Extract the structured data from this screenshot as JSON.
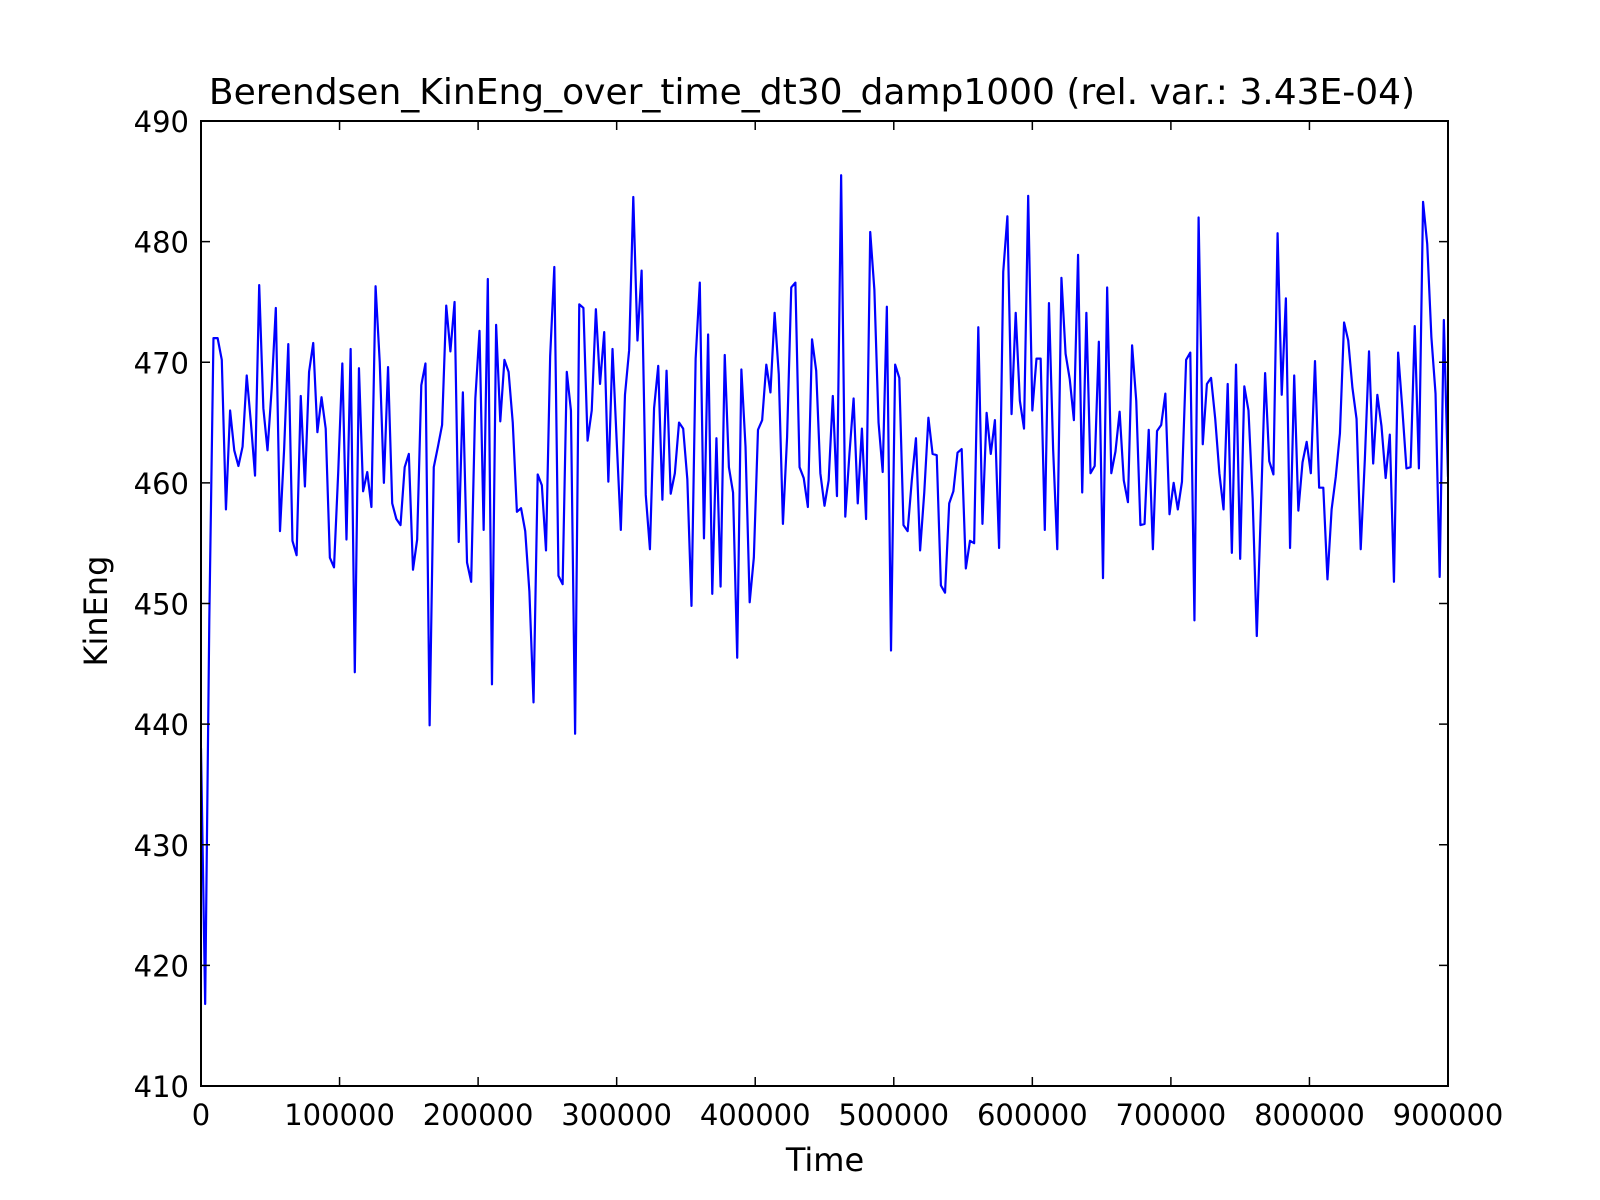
{
  "chart_data": {
    "type": "line",
    "title": "Berendsen_KinEng_over_time_dt30_damp1000 (rel. var.: 3.43E-04)",
    "xlabel": "Time",
    "ylabel": "KinEng",
    "xlim": [
      0,
      900000
    ],
    "ylim": [
      410,
      490
    ],
    "xticks": [
      0,
      100000,
      200000,
      300000,
      400000,
      500000,
      600000,
      700000,
      800000,
      900000
    ],
    "xtick_labels": [
      "0",
      "100000",
      "200000",
      "300000",
      "400000",
      "500000",
      "600000",
      "700000",
      "800000",
      "900000"
    ],
    "yticks": [
      410,
      420,
      430,
      440,
      450,
      460,
      470,
      480,
      490
    ],
    "ytick_labels": [
      "410",
      "420",
      "430",
      "440",
      "450",
      "460",
      "470",
      "480",
      "490"
    ],
    "grid": false,
    "legend": "none",
    "series": [
      {
        "color": "#0000ff",
        "x": [
          0,
          3000,
          6000,
          9000,
          12000,
          15000,
          18000,
          21000,
          24000,
          27000,
          30000,
          33000,
          36000,
          39000,
          42000,
          45000,
          48000,
          51000,
          54000,
          57000,
          60000,
          63000,
          66000,
          69000,
          72000,
          75000,
          78000,
          81000,
          84000,
          87000,
          90000,
          93000,
          96000,
          99000,
          102000,
          105000,
          108000,
          111000,
          114000,
          117000,
          120000,
          123000,
          126000,
          129000,
          132000,
          135000,
          138000,
          141000,
          144000,
          147000,
          150000,
          153000,
          156000,
          159000,
          162000,
          165000,
          168000,
          171000,
          174000,
          177000,
          180000,
          183000,
          186000,
          189000,
          192000,
          195000,
          198000,
          201000,
          204000,
          207000,
          210000,
          213000,
          216000,
          219000,
          222000,
          225000,
          228000,
          231000,
          234000,
          237000,
          240000,
          243000,
          246000,
          249000,
          252000,
          255000,
          258000,
          261000,
          264000,
          267000,
          270000,
          273000,
          276000,
          279000,
          282000,
          285000,
          288000,
          291000,
          294000,
          297000,
          300000,
          303000,
          306000,
          309000,
          312000,
          315000,
          318000,
          321000,
          324000,
          327000,
          330000,
          333000,
          336000,
          339000,
          342000,
          345000,
          348000,
          351000,
          354000,
          357000,
          360000,
          363000,
          366000,
          369000,
          372000,
          375000,
          378000,
          381000,
          384000,
          387000,
          390000,
          393000,
          396000,
          399000,
          402000,
          405000,
          408000,
          411000,
          414000,
          417000,
          420000,
          423000,
          426000,
          429000,
          432000,
          435000,
          438000,
          441000,
          444000,
          447000,
          450000,
          453000,
          456000,
          459000,
          462000,
          465000,
          468000,
          471000,
          474000,
          477000,
          480000,
          483000,
          486000,
          489000,
          492000,
          495000,
          498000,
          501000,
          504000,
          507000,
          510000,
          513000,
          516000,
          519000,
          522000,
          525000,
          528000,
          531000,
          534000,
          537000,
          540000,
          543000,
          546000,
          549000,
          552000,
          555000,
          558000,
          561000,
          564000,
          567000,
          570000,
          573000,
          576000,
          579000,
          582000,
          585000,
          588000,
          591000,
          594000,
          597000,
          600000,
          603000,
          606000,
          609000,
          612000,
          615000,
          618000,
          621000,
          624000,
          627000,
          630000,
          633000,
          636000,
          639000,
          642000,
          645000,
          648000,
          651000,
          654000,
          657000,
          660000,
          663000,
          666000,
          669000,
          672000,
          675000,
          678000,
          681000,
          684000,
          687000,
          690000,
          693000,
          696000,
          699000,
          702000,
          705000,
          708000,
          711000,
          714000,
          717000,
          720000,
          723000,
          726000,
          729000,
          732000,
          735000,
          738000,
          741000,
          744000,
          747000,
          750000,
          753000,
          756000,
          759000,
          762000,
          765000,
          768000,
          771000,
          774000,
          777000,
          780000,
          783000,
          786000,
          789000,
          792000,
          795000,
          798000,
          801000,
          804000,
          807000,
          810000,
          813000,
          816000,
          819000,
          822000,
          825000,
          828000,
          831000,
          834000,
          837000,
          840000,
          843000,
          846000,
          849000,
          852000,
          855000,
          858000,
          861000,
          864000,
          867000,
          870000,
          873000,
          876000,
          879000,
          882000,
          885000,
          888000,
          891000,
          894000,
          897000,
          900000
        ],
        "y": [
          438.0,
          416.8,
          448.7,
          472.0,
          472.0,
          470.2,
          457.8,
          466.0,
          462.7,
          461.4,
          463.0,
          468.9,
          465.0,
          460.6,
          476.4,
          466.2,
          462.7,
          467.8,
          474.5,
          456.0,
          462.8,
          471.5,
          455.2,
          454.0,
          467.2,
          459.7,
          469.2,
          471.6,
          464.2,
          467.1,
          464.5,
          453.8,
          453.0,
          460.8,
          469.9,
          455.3,
          471.1,
          444.3,
          469.5,
          459.3,
          460.9,
          458.0,
          476.3,
          470.0,
          460.0,
          469.6,
          458.3,
          457.0,
          456.5,
          461.3,
          462.4,
          452.8,
          455.3,
          468.1,
          469.9,
          439.9,
          461.3,
          463.0,
          464.8,
          474.7,
          470.9,
          475.0,
          455.1,
          467.5,
          453.4,
          451.8,
          467.0,
          472.6,
          456.1,
          476.9,
          443.3,
          473.1,
          465.1,
          470.2,
          469.2,
          465.0,
          457.6,
          457.9,
          456.0,
          451.0,
          441.8,
          460.7,
          459.8,
          454.4,
          470.5,
          477.9,
          452.3,
          451.6,
          469.2,
          466.0,
          439.2,
          474.8,
          474.5,
          463.5,
          466.0,
          474.4,
          468.2,
          472.5,
          460.1,
          471.1,
          463.5,
          456.1,
          467.3,
          471.0,
          483.7,
          471.8,
          477.6,
          459.0,
          454.5,
          466.2,
          469.7,
          458.6,
          469.3,
          459.1,
          460.8,
          465.0,
          464.5,
          460.3,
          449.8,
          470.3,
          476.6,
          455.4,
          472.3,
          450.8,
          463.7,
          451.4,
          470.6,
          461.3,
          459.2,
          445.5,
          469.4,
          463.0,
          450.1,
          453.8,
          464.4,
          465.2,
          469.8,
          467.5,
          474.1,
          469.0,
          456.6,
          463.8,
          476.2,
          476.6,
          461.3,
          460.4,
          458.0,
          471.9,
          469.3,
          460.8,
          458.1,
          460.2,
          467.2,
          458.9,
          485.5,
          457.2,
          462.4,
          467.0,
          458.3,
          464.5,
          457.0,
          480.8,
          476.0,
          465.0,
          460.9,
          474.6,
          446.1,
          469.8,
          468.7,
          456.5,
          456.0,
          460.2,
          463.7,
          454.4,
          459.2,
          465.4,
          462.4,
          462.3,
          451.5,
          450.9,
          458.3,
          459.3,
          462.5,
          462.8,
          452.9,
          455.2,
          455.0,
          472.9,
          456.6,
          465.8,
          462.4,
          465.2,
          454.6,
          477.5,
          482.1,
          465.7,
          474.1,
          466.8,
          464.5,
          483.8,
          466.0,
          470.3,
          470.3,
          456.1,
          474.9,
          462.8,
          454.5,
          477.0,
          470.7,
          468.6,
          465.2,
          478.9,
          459.2,
          474.1,
          460.8,
          461.4,
          471.7,
          452.1,
          476.2,
          460.8,
          462.6,
          465.9,
          460.2,
          458.4,
          471.4,
          466.8,
          456.5,
          456.6,
          464.4,
          454.5,
          464.3,
          464.8,
          467.4,
          457.4,
          460.0,
          457.8,
          460.1,
          470.2,
          470.8,
          448.6,
          482.0,
          463.2,
          468.2,
          468.7,
          465.3,
          460.8,
          457.8,
          468.2,
          454.2,
          469.8,
          453.7,
          468.0,
          466.0,
          458.7,
          447.3,
          458.0,
          469.1,
          461.8,
          460.7,
          480.7,
          467.3,
          475.3,
          454.6,
          468.9,
          457.7,
          461.7,
          463.4,
          460.8,
          470.1,
          459.6,
          459.6,
          452.0,
          457.8,
          460.5,
          464.1,
          473.3,
          471.8,
          467.9,
          465.3,
          454.5,
          462.0,
          470.9,
          461.6,
          467.3,
          464.7,
          460.4,
          464.0,
          451.8,
          470.8,
          466.2,
          461.2,
          461.3,
          473.0,
          461.2,
          483.3,
          479.8,
          472.1,
          467.4,
          452.2,
          473.5,
          460.5
        ]
      }
    ]
  }
}
